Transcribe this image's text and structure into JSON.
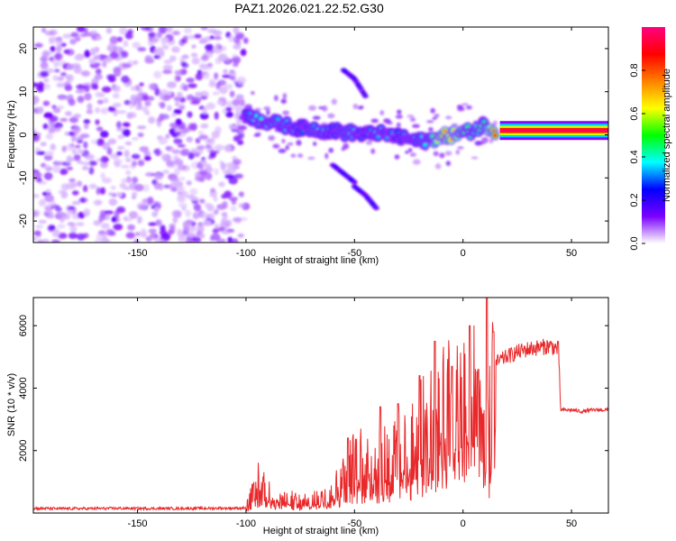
{
  "title": "PAZ1.2026.021.22.52.G30",
  "colors": {
    "snr_line": "#e8282a",
    "axis": "#000000",
    "background": "#ffffff"
  },
  "chart_data": [
    {
      "type": "heatmap",
      "name": "spectrogram",
      "title": "PAZ1.2026.021.22.52.G30",
      "xlabel": "Height of straight line (km)",
      "ylabel": "Frequency (Hz)",
      "xlim": [
        -198,
        67
      ],
      "ylim": [
        -25,
        25
      ],
      "x_ticks": [
        -150,
        -100,
        -50,
        0,
        50
      ],
      "x_tick_labels": [
        "-150",
        "-100",
        "-50",
        "0",
        "50"
      ],
      "y_ticks": [
        20,
        10,
        0,
        -10,
        -20
      ],
      "y_tick_labels": [
        "20",
        "10",
        "0",
        "-10",
        "-20"
      ],
      "description_regions": [
        {
          "x_range": [
            -198,
            -100
          ],
          "note": "diffuse low-amplitude noise across all frequencies"
        },
        {
          "x_range": [
            -100,
            15
          ],
          "note": "main signal near 0 Hz with scattered harmonics"
        },
        {
          "x_range": [
            15,
            67
          ],
          "note": "steady strong carrier at about 1 Hz"
        }
      ],
      "ridge": {
        "x": [
          -100,
          -95,
          -90,
          -85,
          -80,
          -75,
          -70,
          -65,
          -60,
          -55,
          -50,
          -45,
          -40,
          -35,
          -30,
          -25,
          -20,
          -15,
          -10,
          -5,
          0,
          5,
          10,
          15,
          20,
          30,
          40,
          50,
          60,
          67
        ],
        "y": [
          5,
          3.5,
          3,
          2.5,
          2,
          1.5,
          1.5,
          1,
          1,
          0.5,
          0.5,
          0,
          0.5,
          0,
          -0.5,
          -1,
          -1.5,
          -1,
          -0.5,
          0,
          0.5,
          1,
          2.5,
          1,
          1,
          1,
          1,
          1,
          1,
          1
        ],
        "amplitude": [
          0.3,
          0.4,
          0.4,
          0.35,
          0.35,
          0.3,
          0.35,
          0.35,
          0.3,
          0.35,
          0.35,
          0.3,
          0.35,
          0.35,
          0.3,
          0.35,
          0.35,
          0.45,
          0.8,
          0.75,
          0.55,
          0.45,
          0.5,
          0.9,
          0.95,
          0.95,
          0.95,
          0.95,
          0.95,
          0.95
        ]
      },
      "branches": [
        {
          "x": [
            -55,
            -50,
            -45
          ],
          "y": [
            15,
            13,
            9
          ]
        },
        {
          "x": [
            -60,
            -55,
            -50
          ],
          "y": [
            -7,
            -9,
            -11
          ]
        },
        {
          "x": [
            -50,
            -45,
            -40
          ],
          "y": [
            -12,
            -14,
            -17
          ]
        }
      ]
    },
    {
      "type": "colorbar",
      "name": "amplitude-colorbar",
      "label": "Normalized spectral amplitude",
      "range": [
        0.0,
        1.0
      ],
      "ticks": [
        0.0,
        0.2,
        0.4,
        0.6,
        0.8
      ],
      "tick_labels": [
        "0.0",
        "0.2",
        "0.4",
        "0.6",
        "0.8"
      ],
      "colormap": [
        "#ffffff",
        "#7a00ff",
        "#0000ff",
        "#00ffff",
        "#00ff00",
        "#ffff00",
        "#ff8000",
        "#ff0000",
        "#ff0080"
      ]
    },
    {
      "type": "line",
      "name": "snr",
      "xlabel": "Height of straight line (km)",
      "ylabel": "SNR (10 * v/v)",
      "xlim": [
        -198,
        67
      ],
      "ylim": [
        0,
        6900
      ],
      "x_ticks": [
        -150,
        -100,
        -50,
        0,
        50
      ],
      "x_tick_labels": [
        "-150",
        "-100",
        "-50",
        "0",
        "50"
      ],
      "y_ticks": [
        2000,
        4000,
        6000
      ],
      "y_tick_labels": [
        "2000",
        "4000",
        "6000"
      ],
      "series": [
        {
          "name": "SNR",
          "x": [
            -198,
            -180,
            -160,
            -140,
            -120,
            -100,
            -96,
            -93,
            -90,
            -85,
            -80,
            -75,
            -70,
            -65,
            -60,
            -55,
            -50,
            -45,
            -40,
            -35,
            -30,
            -25,
            -20,
            -15,
            -10,
            -5,
            0,
            5,
            10,
            12,
            15,
            20,
            25,
            30,
            35,
            40,
            44,
            45,
            50,
            55,
            60,
            67
          ],
          "y": [
            150,
            140,
            150,
            145,
            150,
            160,
            900,
            1200,
            700,
            500,
            500,
            400,
            400,
            600,
            800,
            1400,
            1700,
            1800,
            1900,
            2000,
            2100,
            2300,
            2700,
            3300,
            3500,
            3800,
            3700,
            4100,
            3300,
            3000,
            4800,
            5000,
            5150,
            5250,
            5300,
            5350,
            5250,
            3300,
            3300,
            3250,
            3300,
            3300
          ],
          "spikes": [
            {
              "x": -53,
              "y": 2400
            },
            {
              "x": -38,
              "y": 3400
            },
            {
              "x": -30,
              "y": 3500
            },
            {
              "x": -20,
              "y": 4400
            },
            {
              "x": -13,
              "y": 5500
            },
            {
              "x": -5,
              "y": 4700
            },
            {
              "x": 3,
              "y": 6000
            },
            {
              "x": 7,
              "y": 4600
            },
            {
              "x": 11,
              "y": 6950
            },
            {
              "x": 14,
              "y": 5800
            }
          ]
        }
      ]
    }
  ]
}
